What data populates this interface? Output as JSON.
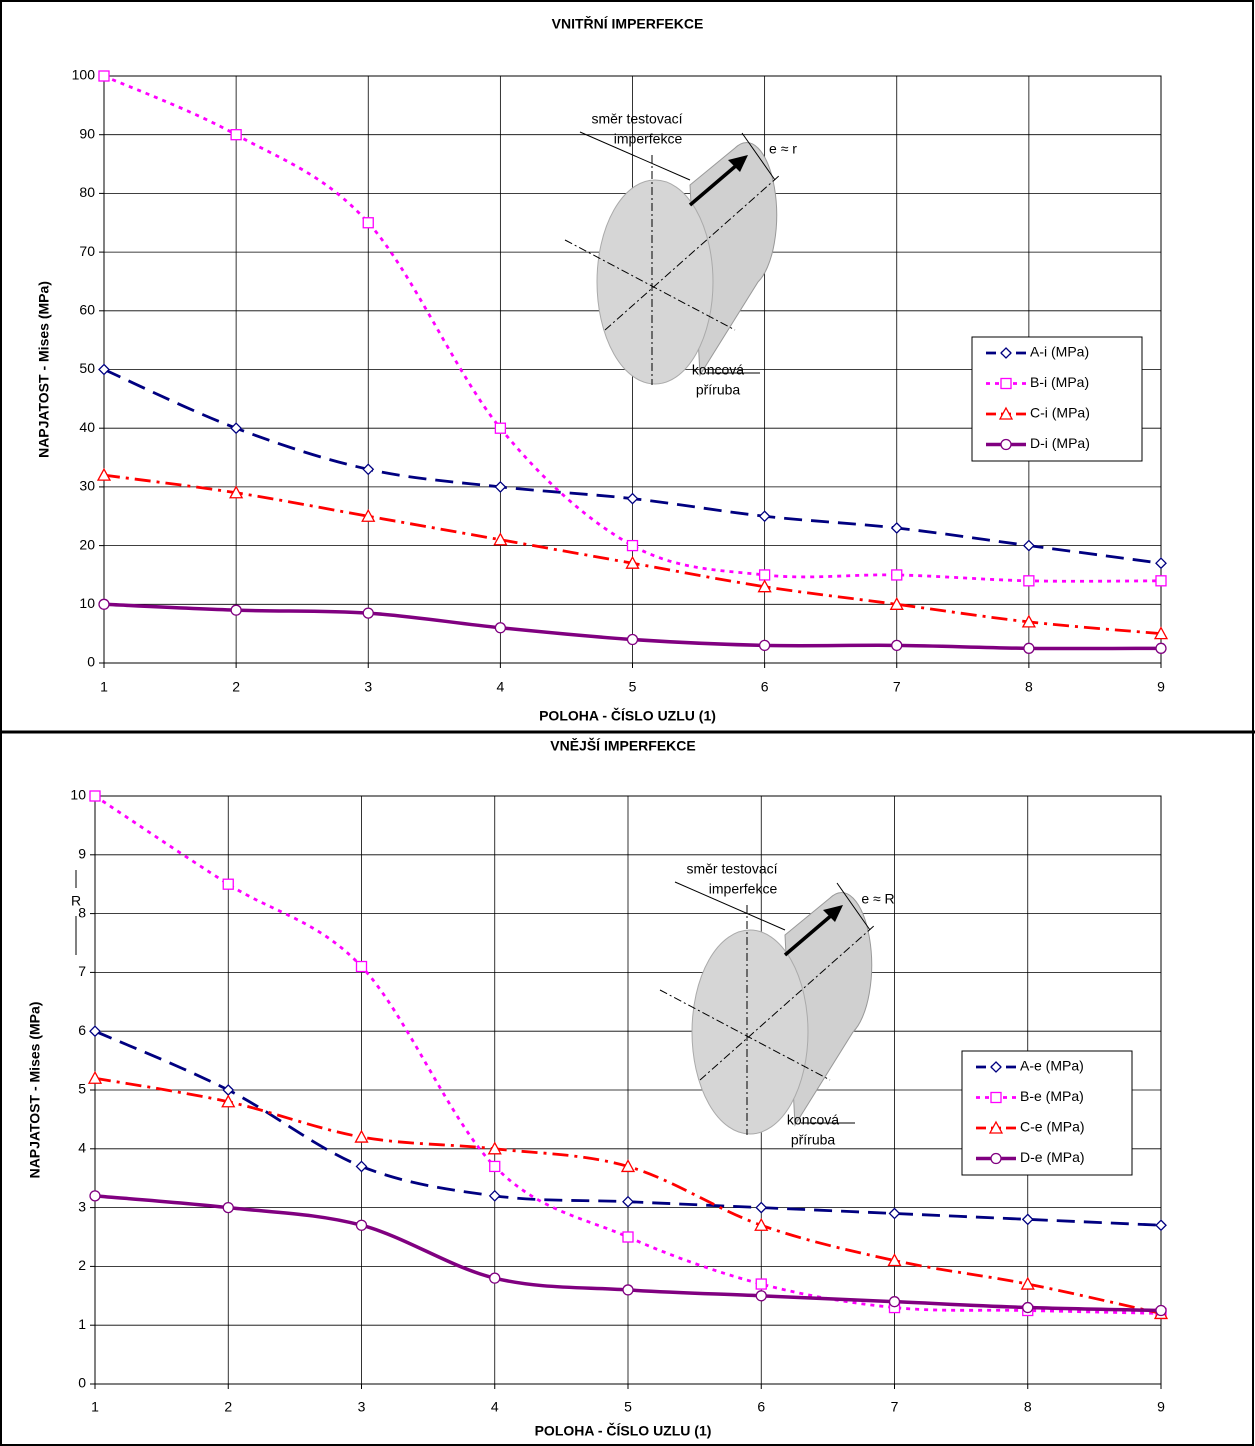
{
  "chart_data": [
    {
      "type": "line",
      "title": "VNITŘNÍ IMPERFEKCE",
      "x_label": "POLOHA - ČÍSLO UZLU   (1)",
      "y_label": "NAPJATOST - Mises (MPa)",
      "x": [
        1,
        2,
        3,
        4,
        5,
        6,
        7,
        8,
        9
      ],
      "xlim": [
        1,
        9
      ],
      "xticks": [
        1,
        2,
        3,
        4,
        5,
        6,
        7,
        8,
        9
      ],
      "ylim": [
        0,
        100
      ],
      "yticks": [
        0,
        10,
        20,
        30,
        40,
        50,
        60,
        70,
        80,
        90,
        100
      ],
      "grid": true,
      "legend": "right",
      "series": [
        {
          "name": "A-i  (MPa)",
          "color": "#000080",
          "marker": "diamond",
          "line_style": "dashed",
          "values": [
            50,
            40,
            33,
            30,
            28,
            25,
            23,
            20,
            17
          ]
        },
        {
          "name": "B-i  (MPa)",
          "color": "#ff00ff",
          "marker": "square",
          "line_style": "dotted",
          "values": [
            100,
            90,
            75,
            40,
            20,
            15,
            15,
            14,
            14
          ]
        },
        {
          "name": "C-i  (MPa)",
          "color": "#ff0000",
          "marker": "triangle",
          "line_style": "dash-dot",
          "values": [
            32,
            29,
            25,
            21,
            17,
            13,
            10,
            7,
            5
          ]
        },
        {
          "name": "D-i  (MPa)",
          "color": "#800080",
          "marker": "circle",
          "line_style": "solid",
          "values": [
            10,
            9,
            8.5,
            6,
            4,
            3,
            3,
            2.5,
            2.5
          ]
        }
      ],
      "annotations": [
        "směr testovací",
        "imperfekce",
        "e ≈ r",
        "koncová",
        "příruba"
      ]
    },
    {
      "type": "line",
      "title": "VNĚJŠÍ  IMPERFEKCE",
      "x_label": "POLOHA - ČÍSLO UZLU   (1)",
      "y_label": "NAPJATOST - Mises (MPa)",
      "x": [
        1,
        2,
        3,
        4,
        5,
        6,
        7,
        8,
        9
      ],
      "xlim": [
        1,
        9
      ],
      "xticks": [
        1,
        2,
        3,
        4,
        5,
        6,
        7,
        8,
        9
      ],
      "ylim": [
        0,
        10
      ],
      "yticks": [
        0,
        1,
        2,
        3,
        4,
        5,
        6,
        7,
        8,
        9,
        10
      ],
      "grid": true,
      "legend": "right",
      "series": [
        {
          "name": "A-e (MPa)",
          "color": "#000080",
          "marker": "diamond",
          "line_style": "dashed",
          "values": [
            6,
            5,
            3.7,
            3.2,
            3.1,
            3.0,
            2.9,
            2.8,
            2.7
          ]
        },
        {
          "name": "B-e (MPa)",
          "color": "#ff00ff",
          "marker": "square",
          "line_style": "dotted",
          "values": [
            10,
            8.5,
            7.1,
            3.7,
            2.5,
            1.7,
            1.3,
            1.25,
            1.2
          ]
        },
        {
          "name": "C-e (MPa)",
          "color": "#ff0000",
          "marker": "triangle",
          "line_style": "dash-dot",
          "values": [
            5.2,
            4.8,
            4.2,
            4.0,
            3.7,
            2.7,
            2.1,
            1.7,
            1.2
          ]
        },
        {
          "name": "D-e (MPa)",
          "color": "#800080",
          "marker": "circle",
          "line_style": "solid",
          "values": [
            3.2,
            3.0,
            2.7,
            1.8,
            1.6,
            1.5,
            1.4,
            1.3,
            1.25
          ]
        }
      ],
      "annotations": [
        "směr testovací",
        "imperfekce",
        "e ≈ R",
        "koncová",
        "příruba",
        "R"
      ]
    }
  ]
}
